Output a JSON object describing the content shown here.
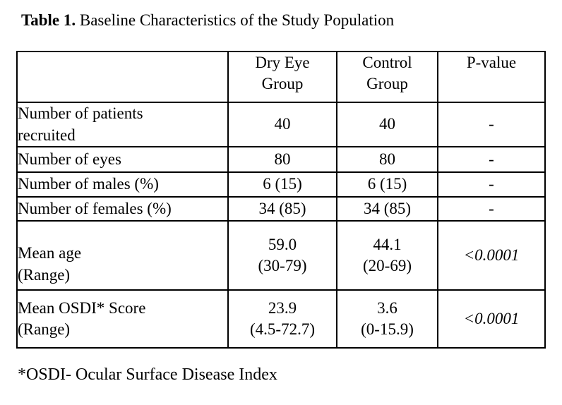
{
  "title": {
    "prefix": "Table 1.",
    "rest": " Baseline Characteristics of the Study Population"
  },
  "table": {
    "header": {
      "col0": "",
      "col1": "Dry Eye\nGroup",
      "col2": "Control\nGroup",
      "col3": "P-value"
    },
    "rows": [
      {
        "label": "Number of patients\nrecruited",
        "dry_eye": "40",
        "control": "40",
        "p_value": "-"
      },
      {
        "label": "Number of eyes",
        "dry_eye": "80",
        "control": "80",
        "p_value": "-"
      },
      {
        "label": "Number of males (%)",
        "dry_eye": "6 (15)",
        "control": "6 (15)",
        "p_value": "-"
      },
      {
        "label": "Number of females (%)",
        "dry_eye": "34 (85)",
        "control": "34 (85)",
        "p_value": "-"
      },
      {
        "label": "Mean age\n(Range)",
        "dry_eye": "59.0\n(30-79)",
        "control": "44.1\n(20-69)",
        "p_value": "<0.0001"
      },
      {
        "label": "Mean OSDI* Score\n(Range)",
        "dry_eye": "23.9\n(4.5-72.7)",
        "control": "3.6\n(0-15.9)",
        "p_value": "<0.0001"
      }
    ]
  },
  "footnote": "*OSDI- Ocular Surface Disease Index",
  "colors": {
    "text": "#000000",
    "background": "#ffffff",
    "border": "#000000"
  },
  "chart_data": {
    "type": "table",
    "title": "Table 1. Baseline Characteristics of the Study Population",
    "columns": [
      "",
      "Dry Eye Group",
      "Control Group",
      "P-value"
    ],
    "rows": [
      [
        "Number of patients recruited",
        "40",
        "40",
        "-"
      ],
      [
        "Number of eyes",
        "80",
        "80",
        "-"
      ],
      [
        "Number of males (%)",
        "6 (15)",
        "6 (15)",
        "-"
      ],
      [
        "Number of females (%)",
        "34 (85)",
        "34 (85)",
        "-"
      ],
      [
        "Mean age (Range)",
        "59.0 (30-79)",
        "44.1 (20-69)",
        "<0.0001"
      ],
      [
        "Mean OSDI* Score (Range)",
        "23.9 (4.5-72.7)",
        "3.6 (0-15.9)",
        "<0.0001"
      ]
    ],
    "footnote": "*OSDI- Ocular Surface Disease Index"
  }
}
